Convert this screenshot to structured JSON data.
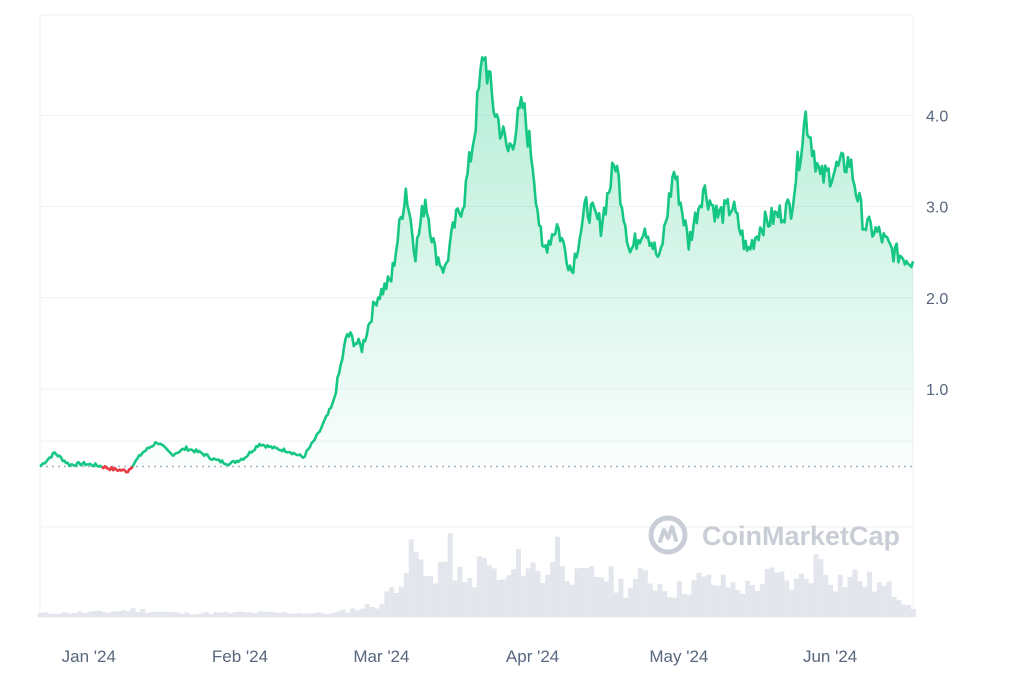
{
  "chart_data": {
    "type": "line",
    "y_ticks": [
      "1.0",
      "2.0",
      "3.0",
      "4.0"
    ],
    "y_tick_values": [
      1.0,
      2.0,
      3.0,
      4.0
    ],
    "x_ticks": [
      "Jan '24",
      "Feb '24",
      "Mar '24",
      "Apr '24",
      "May '24",
      "Jun '24"
    ],
    "x_tick_dates": [
      "2024-01-01",
      "2024-02-01",
      "2024-03-01",
      "2024-04-01",
      "2024-05-01",
      "2024-06-01"
    ],
    "ylim": [
      -1.5,
      5.1
    ],
    "xlim": [
      "2023-12-22",
      "2024-06-18"
    ],
    "baseline": 0.15,
    "grid": true,
    "colors": {
      "up": "#16c784",
      "down": "#ea3943",
      "baseline": "#a6b0c3",
      "grid": "#eff2f5",
      "volume": "#e3e6ec",
      "text": "#58667e"
    },
    "price_series": {
      "x": [
        "2023-12-22",
        "2023-12-25",
        "2023-12-28",
        "2023-12-31",
        "2024-01-03",
        "2024-01-06",
        "2024-01-09",
        "2024-01-12",
        "2024-01-15",
        "2024-01-18",
        "2024-01-21",
        "2024-01-24",
        "2024-01-27",
        "2024-01-30",
        "2024-02-02",
        "2024-02-05",
        "2024-02-08",
        "2024-02-11",
        "2024-02-14",
        "2024-02-17",
        "2024-02-20",
        "2024-02-23",
        "2024-02-26",
        "2024-02-29",
        "2024-03-03",
        "2024-03-06",
        "2024-03-08",
        "2024-03-10",
        "2024-03-12",
        "2024-03-14",
        "2024-03-16",
        "2024-03-18",
        "2024-03-20",
        "2024-03-22",
        "2024-03-24",
        "2024-03-27",
        "2024-03-30",
        "2024-04-01",
        "2024-04-03",
        "2024-04-06",
        "2024-04-09",
        "2024-04-12",
        "2024-04-15",
        "2024-04-18",
        "2024-04-21",
        "2024-04-24",
        "2024-04-27",
        "2024-04-30",
        "2024-05-03",
        "2024-05-06",
        "2024-05-09",
        "2024-05-12",
        "2024-05-15",
        "2024-05-18",
        "2024-05-21",
        "2024-05-24",
        "2024-05-27",
        "2024-05-30",
        "2024-06-02",
        "2024-06-05",
        "2024-06-08",
        "2024-06-11",
        "2024-06-14",
        "2024-06-18"
      ],
      "y": [
        0.15,
        0.3,
        0.17,
        0.18,
        0.16,
        0.12,
        0.1,
        0.3,
        0.42,
        0.28,
        0.35,
        0.3,
        0.22,
        0.18,
        0.25,
        0.4,
        0.35,
        0.32,
        0.25,
        0.5,
        0.82,
        1.6,
        1.45,
        2.0,
        2.2,
        3.2,
        2.5,
        3.1,
        2.5,
        2.3,
        2.8,
        3.1,
        3.8,
        4.7,
        4.1,
        3.6,
        4.1,
        3.5,
        2.5,
        2.8,
        2.3,
        3.0,
        2.8,
        3.5,
        2.5,
        2.8,
        2.4,
        3.4,
        2.6,
        3.2,
        2.9,
        3.0,
        2.5,
        2.8,
        2.9,
        3.0,
        4.0,
        3.3,
        3.4,
        3.5,
        2.8,
        2.7,
        2.5,
        2.4
      ]
    },
    "volume_series": {
      "x": [
        "2023-12-22",
        "2024-01-05",
        "2024-01-10",
        "2024-01-20",
        "2024-02-05",
        "2024-02-20",
        "2024-03-01",
        "2024-03-08",
        "2024-03-10",
        "2024-03-15",
        "2024-03-18",
        "2024-03-22",
        "2024-03-26",
        "2024-03-30",
        "2024-04-03",
        "2024-04-06",
        "2024-04-10",
        "2024-04-15",
        "2024-04-20",
        "2024-04-24",
        "2024-04-30",
        "2024-05-05",
        "2024-05-10",
        "2024-05-15",
        "2024-05-20",
        "2024-05-25",
        "2024-05-30",
        "2024-06-02",
        "2024-06-06",
        "2024-06-10",
        "2024-06-14",
        "2024-06-18"
      ],
      "y": [
        0.05,
        0.07,
        0.1,
        0.05,
        0.06,
        0.05,
        0.18,
        0.9,
        0.5,
        0.85,
        0.4,
        0.75,
        0.45,
        0.8,
        0.55,
        0.95,
        0.5,
        0.6,
        0.4,
        0.55,
        0.35,
        0.5,
        0.45,
        0.4,
        0.55,
        0.45,
        0.8,
        0.5,
        0.55,
        0.45,
        0.35,
        0.15
      ]
    }
  },
  "watermark": {
    "text": "CoinMarketCap"
  }
}
